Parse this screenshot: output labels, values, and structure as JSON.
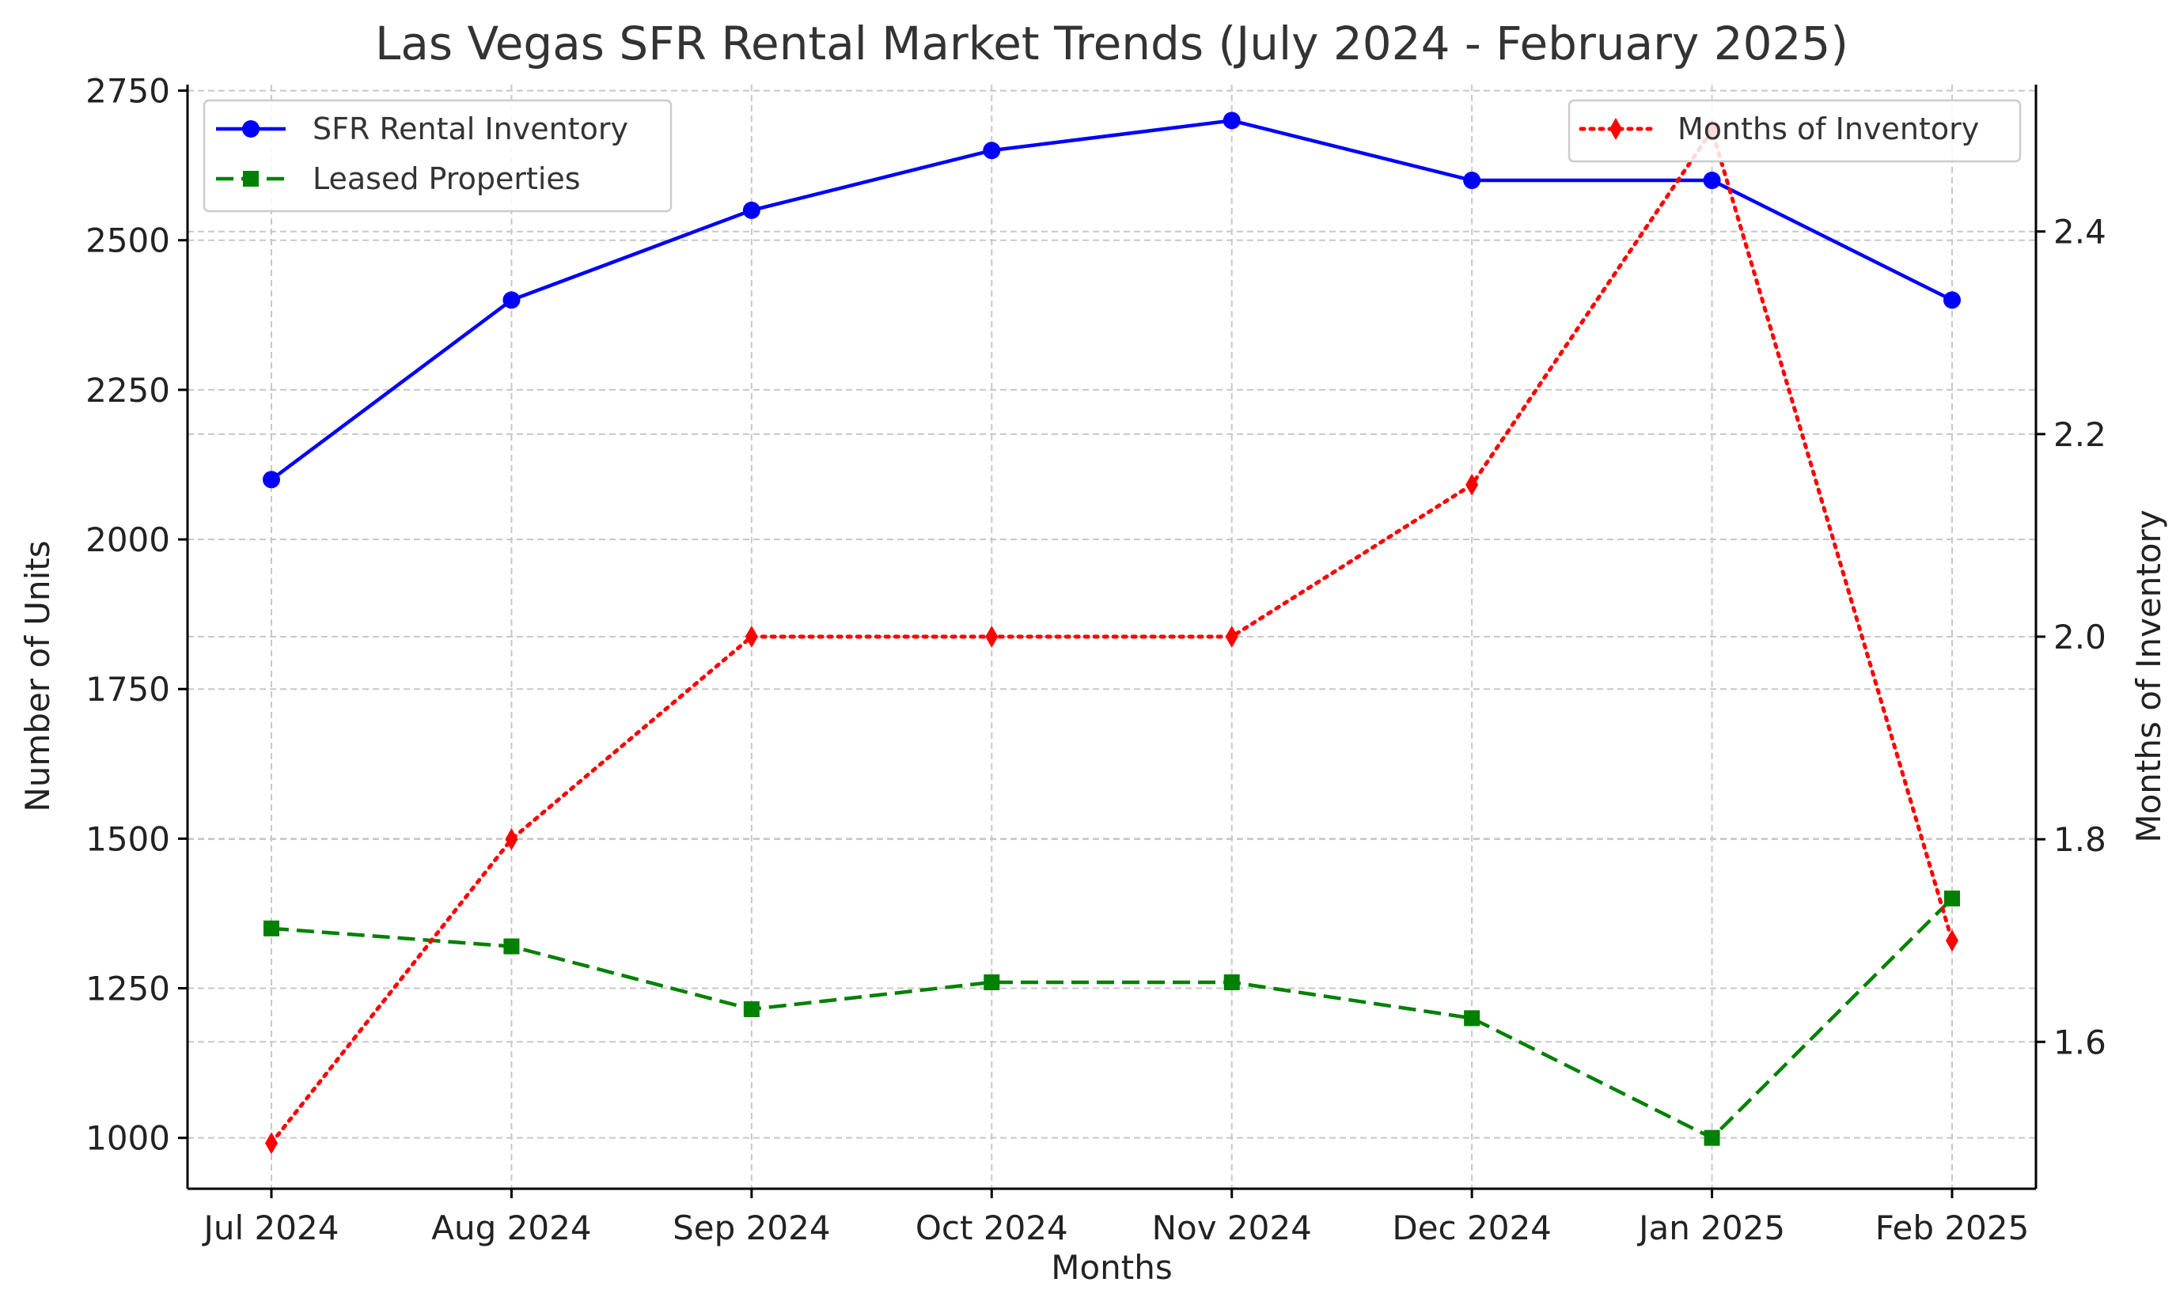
{
  "chart_data": {
    "type": "line",
    "title": "Las Vegas SFR Rental Market Trends (July 2024 - February 2025)",
    "xlabel": "Months",
    "ylabel": "Number of Units",
    "y2label": "Months of Inventory",
    "categories": [
      "Jul 2024",
      "Aug 2024",
      "Sep 2024",
      "Oct 2024",
      "Nov 2024",
      "Dec 2024",
      "Jan 2025",
      "Feb 2025"
    ],
    "ylim": [
      915,
      2760
    ],
    "y2lim": [
      1.455,
      2.545
    ],
    "yticks": [
      1000,
      1250,
      1500,
      1750,
      2000,
      2250,
      2500,
      2750
    ],
    "y2ticks": [
      "1.6",
      "1.8",
      "2.0",
      "2.2",
      "2.4"
    ],
    "grid": true,
    "series": [
      {
        "name": "SFR Rental Inventory",
        "axis": "left",
        "color": "#0000ff",
        "marker": "circle",
        "linestyle": "solid",
        "values": [
          2100,
          2400,
          2550,
          2650,
          2700,
          2600,
          2600,
          2400
        ]
      },
      {
        "name": "Leased Properties",
        "axis": "left",
        "color": "#008000",
        "marker": "square",
        "linestyle": "dashed",
        "values": [
          1350,
          1320,
          1215,
          1260,
          1260,
          1200,
          1000,
          1400
        ]
      },
      {
        "name": "Months of Inventory",
        "axis": "right",
        "color": "#ff0000",
        "marker": "diamond",
        "linestyle": "dotted",
        "values": [
          1.5,
          1.8,
          2.0,
          2.0,
          2.0,
          2.15,
          2.5,
          1.7
        ]
      }
    ],
    "legend_left": {
      "placement": "upper-left",
      "entries": [
        "SFR Rental Inventory",
        "Leased Properties"
      ]
    },
    "legend_right": {
      "placement": "upper-right",
      "entries": [
        "Months of Inventory"
      ]
    }
  }
}
